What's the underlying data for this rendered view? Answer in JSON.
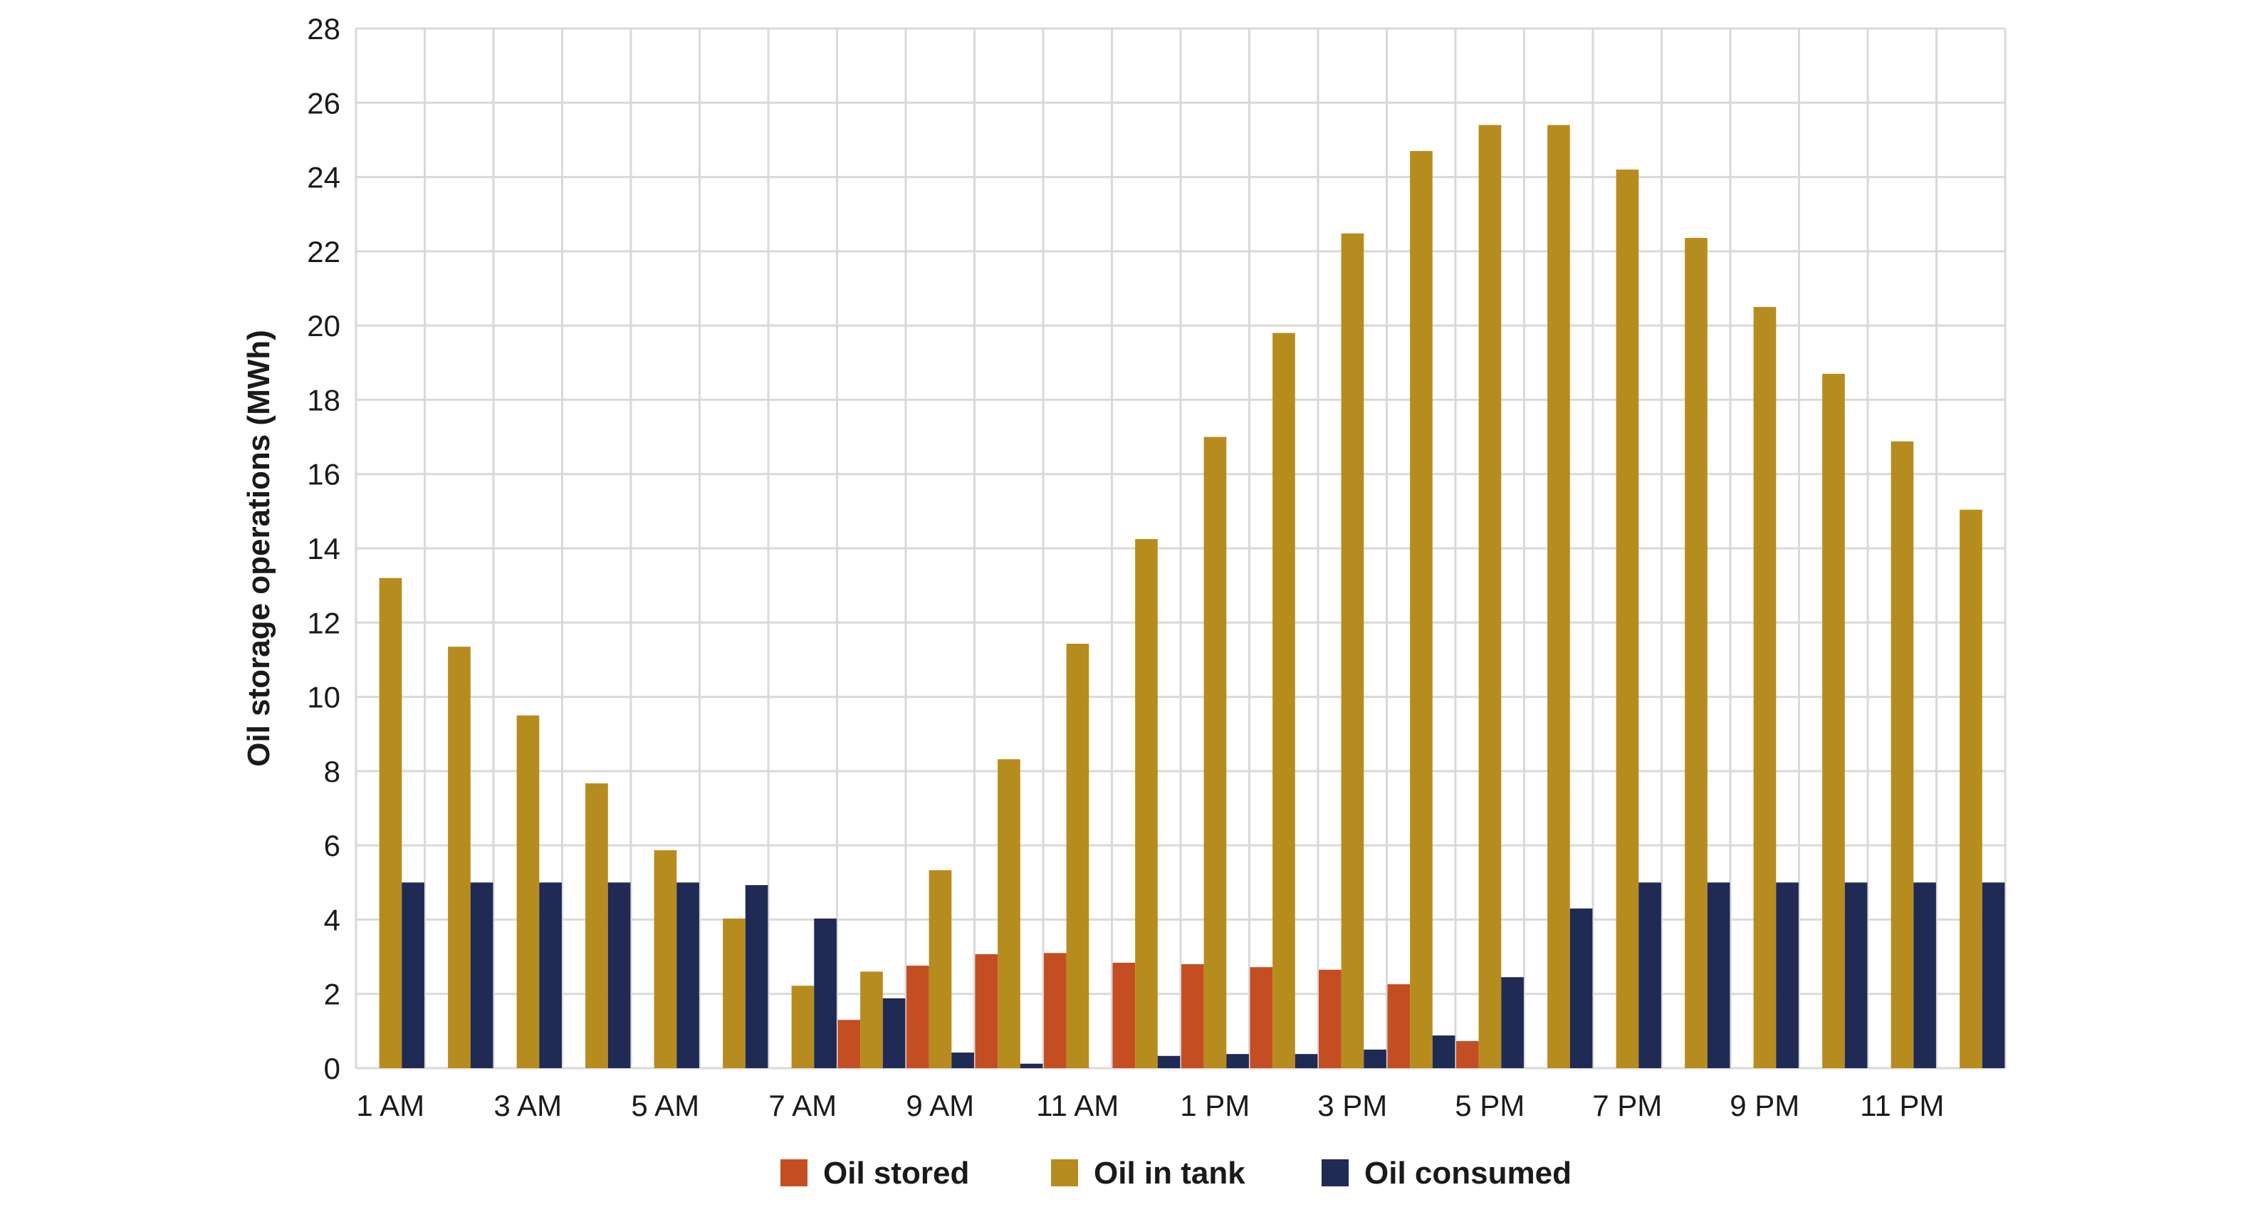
{
  "chart_data": {
    "type": "bar",
    "title": "",
    "xlabel": "",
    "ylabel": "Oil storage operations (MWh)",
    "ylim": [
      0,
      28
    ],
    "yticks": [
      0,
      2,
      4,
      6,
      8,
      10,
      12,
      14,
      16,
      18,
      20,
      22,
      24,
      26,
      28
    ],
    "grid": true,
    "legend_position": "bottom",
    "categories": [
      "1 AM",
      "2 AM",
      "3 AM",
      "4 AM",
      "5 AM",
      "6 AM",
      "7 AM",
      "8 AM",
      "9 AM",
      "10 AM",
      "11 AM",
      "12 PM",
      "1 PM",
      "2 PM",
      "3 PM",
      "4 PM",
      "5 PM",
      "6 PM",
      "7 PM",
      "8 PM",
      "9 PM",
      "10 PM",
      "11 PM",
      "12 AM"
    ],
    "xtick_labels": [
      "1 AM",
      "3 AM",
      "5 AM",
      "7 AM",
      "9 AM",
      "11 AM",
      "1 PM",
      "3 PM",
      "5 PM",
      "7 PM",
      "9 PM",
      "11 PM"
    ],
    "series": [
      {
        "name": "Oil stored",
        "color": "#C44E21",
        "values": [
          0,
          0,
          0,
          0,
          0,
          0,
          0,
          1.3,
          2.76,
          3.07,
          3.1,
          2.84,
          2.8,
          2.72,
          2.65,
          2.26,
          0.73,
          0,
          0,
          0,
          0,
          0,
          0,
          0
        ]
      },
      {
        "name": "Oil in tank",
        "color": "#B78C1E",
        "values": [
          13.2,
          11.35,
          9.5,
          7.67,
          5.87,
          4.03,
          2.22,
          2.6,
          5.33,
          8.32,
          11.43,
          14.25,
          17.0,
          19.8,
          22.48,
          24.7,
          25.4,
          25.4,
          24.2,
          22.36,
          20.5,
          18.7,
          16.88,
          15.04
        ]
      },
      {
        "name": "Oil consumed",
        "color": "#1F2A55",
        "values": [
          5,
          5,
          5,
          5,
          5,
          4.93,
          4.03,
          1.88,
          0.42,
          0.12,
          0,
          0.33,
          0.38,
          0.38,
          0.5,
          0.88,
          2.45,
          4.3,
          5,
          5,
          5,
          5,
          5,
          5
        ]
      }
    ]
  }
}
